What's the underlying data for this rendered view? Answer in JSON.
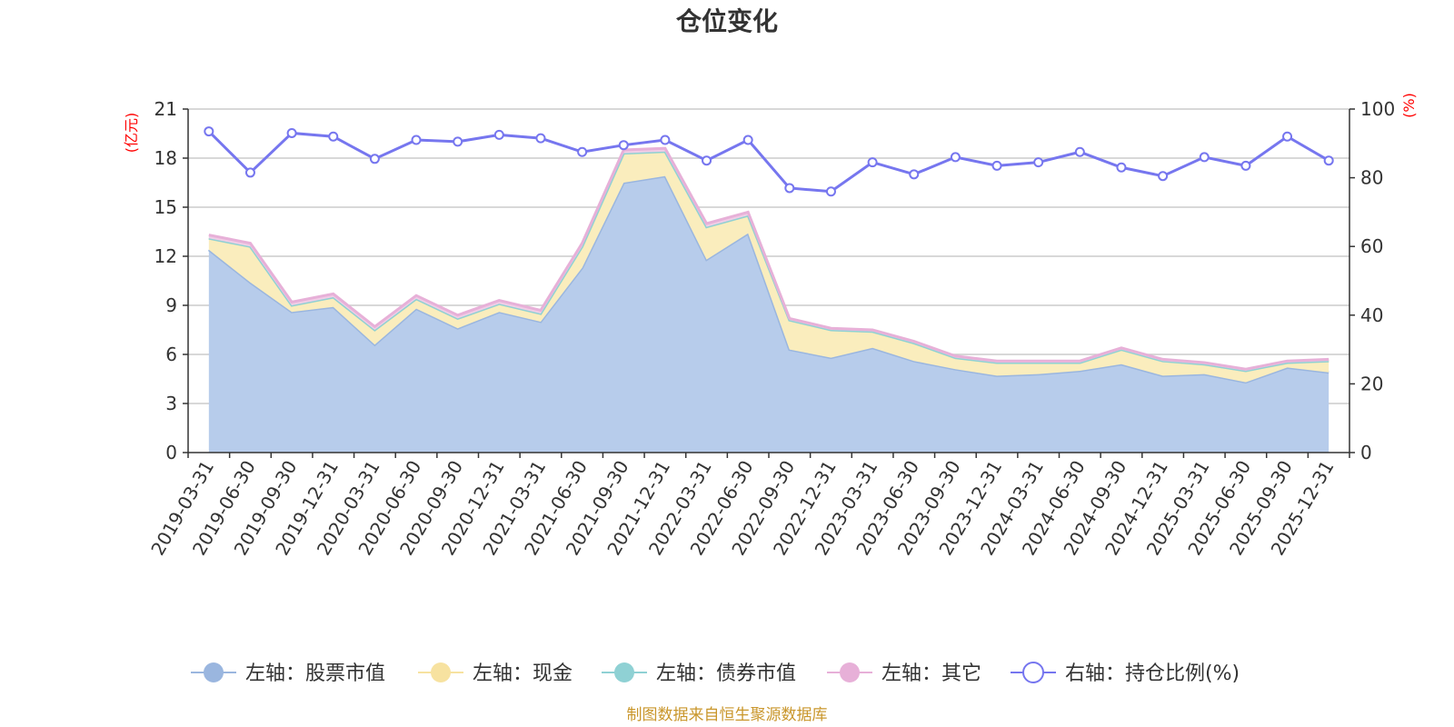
{
  "chart_data": {
    "type": "area",
    "title": "仓位变化",
    "left_axis_unit": "(亿元)",
    "right_axis_unit": "(%)",
    "left_ylim": [
      0,
      21
    ],
    "left_ticks": [
      0,
      3,
      6,
      9,
      12,
      15,
      18,
      21
    ],
    "right_ylim": [
      0,
      100
    ],
    "right_ticks": [
      0,
      20,
      40,
      60,
      80,
      100
    ],
    "categories": [
      "2019-03-31",
      "2019-06-30",
      "2019-09-30",
      "2019-12-31",
      "2020-03-31",
      "2020-06-30",
      "2020-09-30",
      "2020-12-31",
      "2021-03-31",
      "2021-06-30",
      "2021-09-30",
      "2021-12-31",
      "2022-03-31",
      "2022-06-30",
      "2022-09-30",
      "2022-12-31",
      "2023-03-31",
      "2023-06-30",
      "2023-09-30",
      "2023-12-31",
      "2024-03-31",
      "2024-06-30",
      "2024-09-30",
      "2024-12-31",
      "2025-03-31",
      "2025-06-30",
      "2025-09-30",
      "2025-12-31"
    ],
    "series": [
      {
        "name": "左轴：股票市值",
        "axis": "left",
        "color": "#9ab6df",
        "fill": "#b7cceb",
        "values": [
          12.4,
          10.4,
          8.6,
          8.9,
          6.6,
          8.8,
          7.6,
          8.6,
          8.0,
          11.3,
          16.5,
          16.9,
          11.8,
          13.4,
          6.3,
          5.8,
          6.4,
          5.6,
          5.1,
          4.7,
          4.8,
          5.0,
          5.4,
          4.7,
          4.8,
          4.3,
          5.2,
          4.9
        ]
      },
      {
        "name": "左轴：现金",
        "axis": "left",
        "color": "#f7e2a0",
        "fill": "#faedbd",
        "values": [
          0.7,
          2.2,
          0.4,
          0.6,
          0.9,
          0.6,
          0.6,
          0.5,
          0.5,
          1.3,
          1.8,
          1.5,
          2.0,
          1.1,
          1.8,
          1.7,
          1.0,
          1.1,
          0.7,
          0.8,
          0.7,
          0.5,
          0.9,
          0.9,
          0.6,
          0.7,
          0.3,
          0.7
        ]
      },
      {
        "name": "左轴：债券市值",
        "axis": "left",
        "color": "#8fd1d4",
        "fill": "#b5e1e3",
        "values": [
          0,
          0,
          0,
          0,
          0,
          0,
          0,
          0,
          0,
          0,
          0,
          0,
          0,
          0,
          0,
          0,
          0,
          0,
          0,
          0,
          0,
          0,
          0,
          0,
          0,
          0,
          0,
          0
        ]
      },
      {
        "name": "左轴：其它",
        "axis": "left",
        "color": "#e7b0d8",
        "fill": "#f0cde6",
        "values": [
          0.2,
          0.2,
          0.2,
          0.2,
          0.2,
          0.2,
          0.2,
          0.2,
          0.2,
          0.2,
          0.2,
          0.2,
          0.2,
          0.2,
          0.1,
          0.1,
          0.1,
          0.1,
          0.1,
          0.1,
          0.1,
          0.1,
          0.1,
          0.1,
          0.1,
          0.1,
          0.1,
          0.1
        ]
      },
      {
        "name": "右轴：持仓比例(%)",
        "axis": "right",
        "color": "#7676ef",
        "values": [
          93.5,
          81.5,
          93,
          92,
          85.5,
          91,
          90.5,
          92.5,
          91.5,
          87.5,
          89.5,
          91,
          85,
          91,
          77,
          76,
          84.5,
          81,
          86,
          83.5,
          84.5,
          87.5,
          83,
          80.5,
          86,
          83.5,
          92,
          85
        ]
      }
    ]
  },
  "source_note": "制图数据来自恒生聚源数据库"
}
